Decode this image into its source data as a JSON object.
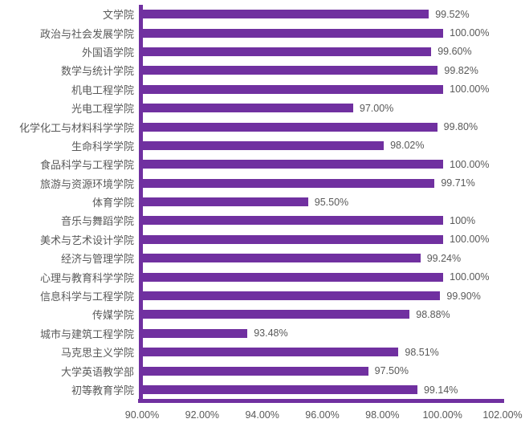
{
  "chart_data": {
    "type": "bar",
    "orientation": "horizontal",
    "title": "",
    "xlabel": "",
    "ylabel": "",
    "xlim": [
      90,
      102
    ],
    "grid": false,
    "legend": null,
    "bar_color": "#7030A0",
    "axis_color": "#7030A0",
    "text_color": "#595959",
    "categories": [
      "文学院",
      "政治与社会发展学院",
      "外国语学院",
      "数学与统计学院",
      "机电工程学院",
      "光电工程学院",
      "化学化工与材料科学学院",
      "生命科学学院",
      "食品科学与工程学院",
      "旅游与资源环境学院",
      "体育学院",
      "音乐与舞蹈学院",
      "美术与艺术设计学院",
      "经济与管理学院",
      "心理与教育科学学院",
      "信息科学与工程学院",
      "传媒学院",
      "城市与建筑工程学院",
      "马克思主义学院",
      "大学英语教学部",
      "初等教育学院"
    ],
    "values": [
      99.52,
      100.0,
      99.6,
      99.82,
      100.0,
      97.0,
      99.8,
      98.02,
      100.0,
      99.71,
      95.5,
      100.0,
      100.0,
      99.24,
      100.0,
      99.9,
      98.88,
      93.48,
      98.51,
      97.5,
      99.14
    ],
    "value_labels": [
      "99.52%",
      "100.00%",
      "99.60%",
      "99.82%",
      "100.00%",
      "97.00%",
      "99.80%",
      "98.02%",
      "100.00%",
      "99.71%",
      "95.50%",
      "100%",
      "100.00%",
      "99.24%",
      "100.00%",
      "99.90%",
      "98.88%",
      "93.48%",
      "98.51%",
      "97.50%",
      "99.14%"
    ],
    "x_ticks": [
      "90.00%",
      "92.00%",
      "94.00%",
      "96.00%",
      "98.00%",
      "100.00%",
      "102.00%"
    ]
  }
}
